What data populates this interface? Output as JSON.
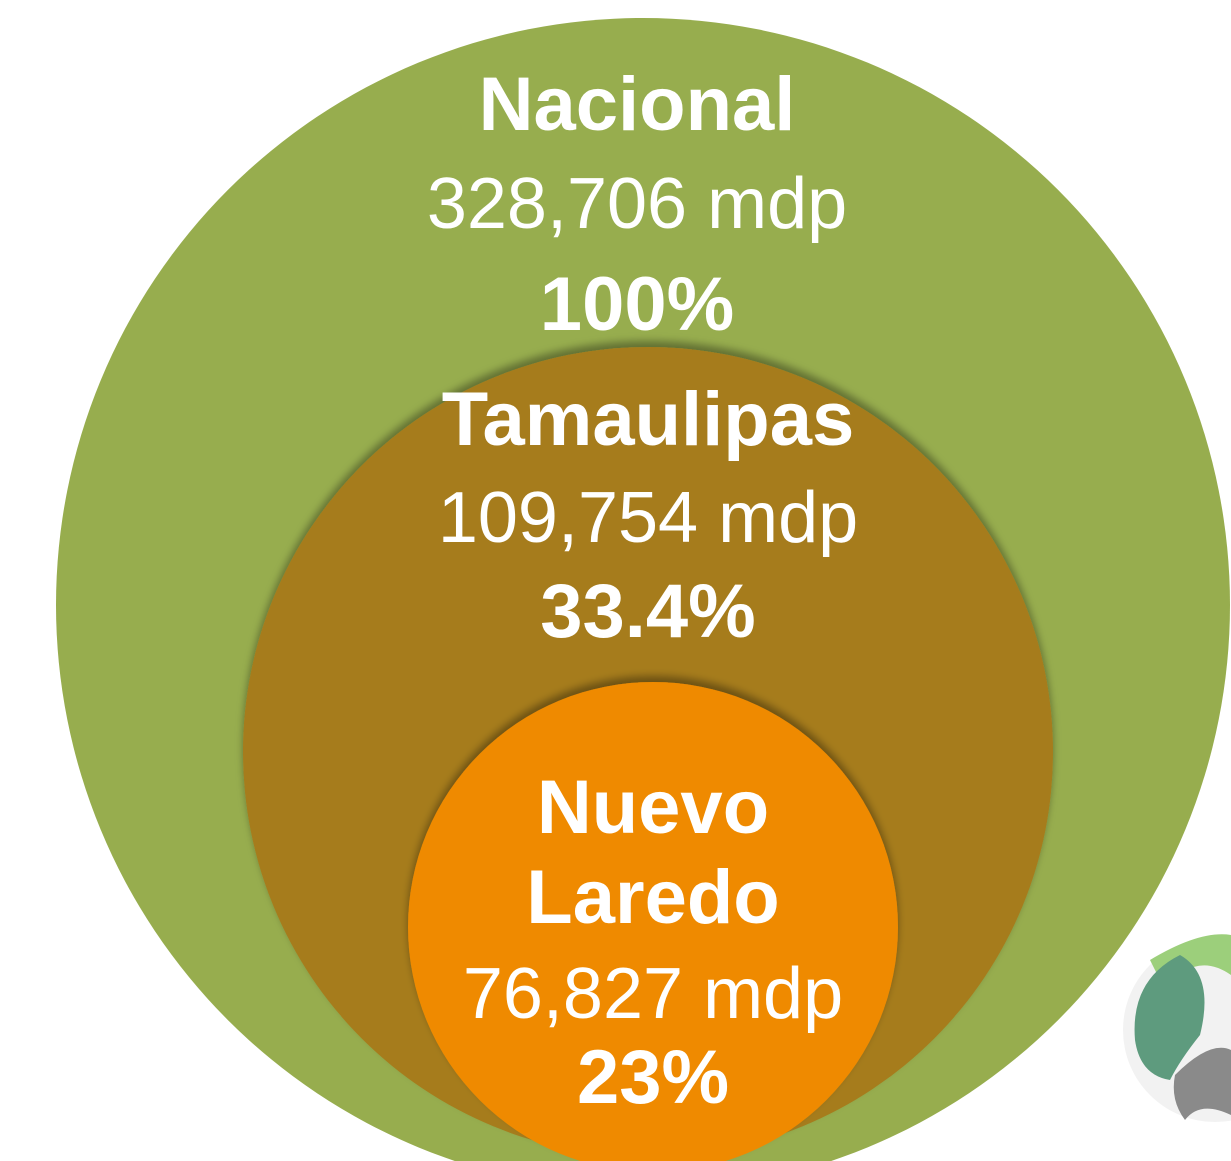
{
  "nodes": [
    {
      "label_lines": [
        "Nacional"
      ],
      "amount": "328,706 mdp",
      "share": "100%"
    },
    {
      "label_lines": [
        "Tamaulipas"
      ],
      "amount": "109,754 mdp",
      "share": "33.4%"
    },
    {
      "label_lines": [
        "Nuevo",
        "Laredo"
      ],
      "amount": "76,827 mdp",
      "share": "23%"
    }
  ]
}
